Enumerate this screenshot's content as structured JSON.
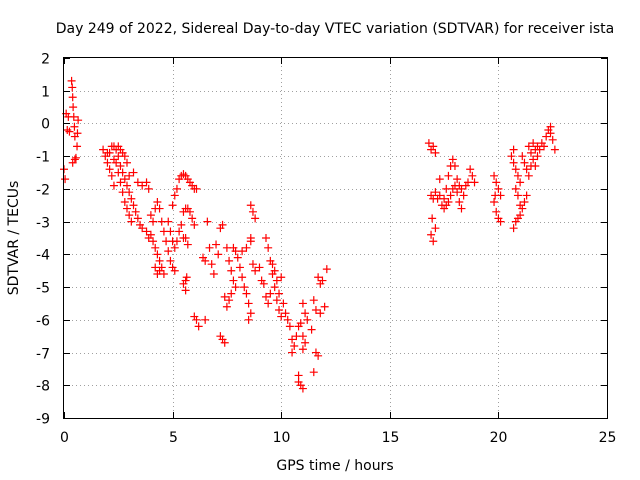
{
  "chart_data": {
    "type": "scatter",
    "title": "Day 249 of 2022, Sidereal Day-to-day VTEC variation (SDTVAR) for receiver ista",
    "xlabel": "GPS time / hours",
    "ylabel": "SDTVAR / TECUs",
    "xlim": [
      0,
      25
    ],
    "ylim": [
      -9,
      2
    ],
    "xticks": [
      0,
      5,
      10,
      15,
      20,
      25
    ],
    "yticks": [
      -9,
      -8,
      -7,
      -6,
      -5,
      -4,
      -3,
      -2,
      -1,
      0,
      1,
      2
    ],
    "grid": true,
    "marker": "plus",
    "color": "#ff0000",
    "series": [
      {
        "name": "SDTVAR",
        "points": [
          [
            0.0,
            -1.4
          ],
          [
            0.05,
            -1.7
          ],
          [
            0.1,
            0.3
          ],
          [
            0.15,
            -0.2
          ],
          [
            0.2,
            0.2
          ],
          [
            0.25,
            -0.25
          ],
          [
            0.35,
            1.3
          ],
          [
            0.38,
            1.1
          ],
          [
            0.4,
            0.8
          ],
          [
            0.42,
            0.5
          ],
          [
            0.45,
            0.2
          ],
          [
            0.48,
            -0.1
          ],
          [
            0.5,
            -0.4
          ],
          [
            0.5,
            -1.1
          ],
          [
            0.55,
            -1.05
          ],
          [
            0.6,
            -0.7
          ],
          [
            0.62,
            -0.3
          ],
          [
            0.65,
            0.1
          ],
          [
            0.4,
            -1.2
          ],
          [
            1.8,
            -0.8
          ],
          [
            1.9,
            -1.0
          ],
          [
            2.0,
            -1.2
          ],
          [
            2.1,
            -1.4
          ],
          [
            2.2,
            -1.6
          ],
          [
            2.3,
            -1.9
          ],
          [
            2.1,
            -0.9
          ],
          [
            2.2,
            -0.7
          ],
          [
            2.3,
            -0.7
          ],
          [
            2.4,
            -0.8
          ],
          [
            2.5,
            -0.7
          ],
          [
            2.6,
            -0.8
          ],
          [
            2.7,
            -0.9
          ],
          [
            2.8,
            -1.0
          ],
          [
            2.9,
            -1.2
          ],
          [
            2.5,
            -1.0
          ],
          [
            2.6,
            -1.3
          ],
          [
            2.7,
            -1.5
          ],
          [
            2.8,
            -1.7
          ],
          [
            2.9,
            -1.9
          ],
          [
            3.0,
            -2.1
          ],
          [
            3.1,
            -2.3
          ],
          [
            3.2,
            -2.5
          ],
          [
            3.3,
            -2.7
          ],
          [
            3.4,
            -2.9
          ],
          [
            3.5,
            -3.1
          ],
          [
            3.6,
            -3.2
          ],
          [
            2.4,
            -1.2
          ],
          [
            2.5,
            -1.5
          ],
          [
            2.6,
            -1.8
          ],
          [
            2.7,
            -2.1
          ],
          [
            2.8,
            -2.4
          ],
          [
            2.9,
            -2.6
          ],
          [
            3.0,
            -2.8
          ],
          [
            3.1,
            -3.0
          ],
          [
            3.0,
            -1.6
          ],
          [
            3.2,
            -1.5
          ],
          [
            3.4,
            -1.8
          ],
          [
            3.6,
            -1.9
          ],
          [
            2.0,
            -0.9
          ],
          [
            2.3,
            -1.1
          ],
          [
            3.8,
            -1.8
          ],
          [
            3.9,
            -2.0
          ],
          [
            3.8,
            -3.3
          ],
          [
            3.9,
            -3.5
          ],
          [
            4.0,
            -3.4
          ],
          [
            4.1,
            -3.6
          ],
          [
            4.2,
            -3.8
          ],
          [
            4.3,
            -4.0
          ],
          [
            4.4,
            -4.2
          ],
          [
            4.5,
            -4.4
          ],
          [
            4.6,
            -4.6
          ],
          [
            4.0,
            -2.8
          ],
          [
            4.1,
            -3.0
          ],
          [
            4.2,
            -2.6
          ],
          [
            4.3,
            -2.4
          ],
          [
            4.4,
            -2.6
          ],
          [
            4.5,
            -3.0
          ],
          [
            4.6,
            -3.3
          ],
          [
            4.7,
            -3.6
          ],
          [
            4.8,
            -3.9
          ],
          [
            4.9,
            -4.2
          ],
          [
            5.0,
            -4.4
          ],
          [
            5.1,
            -4.5
          ],
          [
            4.2,
            -4.4
          ],
          [
            4.3,
            -4.6
          ],
          [
            4.4,
            -4.5
          ],
          [
            4.8,
            -3.0
          ],
          [
            4.9,
            -3.3
          ],
          [
            5.0,
            -3.6
          ],
          [
            5.1,
            -3.8
          ],
          [
            5.2,
            -3.6
          ],
          [
            5.3,
            -3.3
          ],
          [
            5.4,
            -3.1
          ],
          [
            5.5,
            -3.5
          ],
          [
            5.0,
            -2.5
          ],
          [
            5.1,
            -2.2
          ],
          [
            5.2,
            -2.0
          ],
          [
            5.3,
            -1.7
          ],
          [
            5.4,
            -1.6
          ],
          [
            5.5,
            -1.55
          ],
          [
            5.6,
            -1.6
          ],
          [
            5.7,
            -1.7
          ],
          [
            5.8,
            -1.8
          ],
          [
            5.9,
            -1.9
          ],
          [
            6.0,
            -2.0
          ],
          [
            6.1,
            -2.0
          ],
          [
            5.5,
            -2.7
          ],
          [
            5.6,
            -2.6
          ],
          [
            5.7,
            -2.6
          ],
          [
            5.8,
            -2.7
          ],
          [
            5.9,
            -2.9
          ],
          [
            6.0,
            -3.1
          ],
          [
            5.6,
            -3.5
          ],
          [
            5.7,
            -3.7
          ],
          [
            5.6,
            -4.8
          ],
          [
            5.5,
            -4.9
          ],
          [
            5.65,
            -4.7
          ],
          [
            5.6,
            -5.1
          ],
          [
            6.0,
            -5.9
          ],
          [
            6.1,
            -6.0
          ],
          [
            6.2,
            -6.2
          ],
          [
            6.5,
            -6.0
          ],
          [
            6.4,
            -4.1
          ],
          [
            6.5,
            -4.2
          ],
          [
            6.6,
            -3.0
          ],
          [
            6.7,
            -3.8
          ],
          [
            6.8,
            -4.3
          ],
          [
            6.9,
            -4.6
          ],
          [
            7.0,
            -3.7
          ],
          [
            7.1,
            -4.0
          ],
          [
            7.2,
            -3.2
          ],
          [
            7.3,
            -3.1
          ],
          [
            7.2,
            -6.5
          ],
          [
            7.3,
            -6.6
          ],
          [
            7.4,
            -6.7
          ],
          [
            7.5,
            -3.8
          ],
          [
            7.6,
            -4.2
          ],
          [
            7.7,
            -4.5
          ],
          [
            7.8,
            -4.8
          ],
          [
            7.9,
            -5.0
          ],
          [
            7.4,
            -5.3
          ],
          [
            7.5,
            -5.6
          ],
          [
            7.6,
            -5.4
          ],
          [
            7.7,
            -5.2
          ],
          [
            7.8,
            -3.8
          ],
          [
            7.9,
            -3.9
          ],
          [
            8.0,
            -4.1
          ],
          [
            8.1,
            -4.4
          ],
          [
            8.2,
            -4.7
          ],
          [
            8.3,
            -5.0
          ],
          [
            8.4,
            -5.2
          ],
          [
            8.5,
            -5.5
          ],
          [
            8.5,
            -6.0
          ],
          [
            8.6,
            -5.8
          ],
          [
            8.2,
            -3.9
          ],
          [
            8.4,
            -3.8
          ],
          [
            8.6,
            -3.5
          ],
          [
            8.7,
            -4.3
          ],
          [
            8.8,
            -4.5
          ],
          [
            8.6,
            -2.5
          ],
          [
            8.7,
            -2.7
          ],
          [
            8.8,
            -2.9
          ],
          [
            8.6,
            -3.6
          ],
          [
            9.0,
            -4.4
          ],
          [
            9.1,
            -4.8
          ],
          [
            9.2,
            -4.9
          ],
          [
            9.3,
            -3.5
          ],
          [
            9.4,
            -3.8
          ],
          [
            9.5,
            -4.2
          ],
          [
            9.6,
            -4.6
          ],
          [
            9.7,
            -5.0
          ],
          [
            9.8,
            -5.4
          ],
          [
            9.9,
            -5.7
          ],
          [
            10.0,
            -5.9
          ],
          [
            9.6,
            -4.3
          ],
          [
            9.7,
            -4.5
          ],
          [
            9.8,
            -4.8
          ],
          [
            9.9,
            -5.2
          ],
          [
            9.3,
            -5.3
          ],
          [
            9.4,
            -5.5
          ],
          [
            9.5,
            -5.2
          ],
          [
            10.0,
            -4.7
          ],
          [
            10.1,
            -5.5
          ],
          [
            10.2,
            -5.8
          ],
          [
            10.3,
            -6.0
          ],
          [
            10.4,
            -6.2
          ],
          [
            10.5,
            -6.6
          ],
          [
            10.6,
            -6.8
          ],
          [
            10.5,
            -7.0
          ],
          [
            10.7,
            -6.5
          ],
          [
            10.8,
            -6.2
          ],
          [
            10.9,
            -6.1
          ],
          [
            11.0,
            -6.5
          ],
          [
            11.1,
            -6.7
          ],
          [
            11.0,
            -6.9
          ],
          [
            10.8,
            -7.9
          ],
          [
            10.9,
            -8.0
          ],
          [
            11.0,
            -8.1
          ],
          [
            10.8,
            -7.7
          ],
          [
            11.0,
            -5.5
          ],
          [
            11.1,
            -5.8
          ],
          [
            11.2,
            -6.0
          ],
          [
            11.4,
            -6.3
          ],
          [
            11.5,
            -5.4
          ],
          [
            11.6,
            -7.0
          ],
          [
            11.7,
            -7.1
          ],
          [
            11.5,
            -7.6
          ],
          [
            11.6,
            -5.7
          ],
          [
            11.8,
            -5.8
          ],
          [
            11.7,
            -4.7
          ],
          [
            11.8,
            -4.9
          ],
          [
            11.9,
            -4.8
          ],
          [
            12.0,
            -5.6
          ],
          [
            12.1,
            -4.45
          ],
          [
            16.8,
            -0.6
          ],
          [
            16.9,
            -0.8
          ],
          [
            17.0,
            -0.7
          ],
          [
            17.1,
            -0.9
          ],
          [
            16.9,
            -2.2
          ],
          [
            17.0,
            -2.3
          ],
          [
            17.1,
            -2.1
          ],
          [
            17.2,
            -2.3
          ],
          [
            17.3,
            -2.2
          ],
          [
            16.9,
            -3.4
          ],
          [
            17.0,
            -3.6
          ],
          [
            17.1,
            -3.2
          ],
          [
            16.95,
            -2.9
          ],
          [
            17.4,
            -2.5
          ],
          [
            17.5,
            -2.3
          ],
          [
            17.6,
            -2.0
          ],
          [
            17.7,
            -1.6
          ],
          [
            17.8,
            -1.3
          ],
          [
            17.9,
            -1.1
          ],
          [
            18.0,
            -1.3
          ],
          [
            18.1,
            -1.7
          ],
          [
            17.8,
            -2.2
          ],
          [
            17.9,
            -2.0
          ],
          [
            18.0,
            -1.9
          ],
          [
            18.1,
            -2.1
          ],
          [
            18.2,
            -2.4
          ],
          [
            18.3,
            -2.6
          ],
          [
            18.4,
            -2.2
          ],
          [
            18.2,
            -1.9
          ],
          [
            18.3,
            -2.0
          ],
          [
            18.5,
            -1.9
          ],
          [
            18.6,
            -1.8
          ],
          [
            18.7,
            -1.4
          ],
          [
            18.8,
            -1.6
          ],
          [
            18.9,
            -1.8
          ],
          [
            17.5,
            -2.6
          ],
          [
            17.6,
            -2.5
          ],
          [
            17.7,
            -2.4
          ],
          [
            17.3,
            -1.7
          ],
          [
            19.8,
            -1.6
          ],
          [
            19.9,
            -1.8
          ],
          [
            20.0,
            -2.0
          ],
          [
            20.1,
            -2.2
          ],
          [
            19.9,
            -2.7
          ],
          [
            20.0,
            -2.9
          ],
          [
            20.1,
            -3.0
          ],
          [
            19.8,
            -2.4
          ],
          [
            19.85,
            -2.2
          ],
          [
            20.6,
            -1.0
          ],
          [
            20.7,
            -1.2
          ],
          [
            20.8,
            -1.4
          ],
          [
            20.9,
            -1.6
          ],
          [
            21.0,
            -1.8
          ],
          [
            20.7,
            -0.8
          ],
          [
            20.8,
            -2.0
          ],
          [
            20.9,
            -2.2
          ],
          [
            21.0,
            -2.5
          ],
          [
            20.7,
            -3.2
          ],
          [
            20.8,
            -3.0
          ],
          [
            20.9,
            -2.9
          ],
          [
            21.0,
            -2.8
          ],
          [
            21.1,
            -2.6
          ],
          [
            21.2,
            -2.4
          ],
          [
            21.3,
            -2.2
          ],
          [
            21.1,
            -1.0
          ],
          [
            21.2,
            -1.2
          ],
          [
            21.3,
            -1.4
          ],
          [
            21.4,
            -1.6
          ],
          [
            21.5,
            -1.3
          ],
          [
            21.4,
            -0.7
          ],
          [
            21.5,
            -0.9
          ],
          [
            21.6,
            -1.1
          ],
          [
            21.7,
            -1.3
          ],
          [
            21.8,
            -1.0
          ],
          [
            21.9,
            -0.8
          ],
          [
            22.0,
            -0.6
          ],
          [
            22.1,
            -0.7
          ],
          [
            22.2,
            -0.4
          ],
          [
            22.3,
            -0.2
          ],
          [
            22.4,
            -0.1
          ],
          [
            22.5,
            -0.5
          ],
          [
            22.6,
            -0.8
          ],
          [
            22.4,
            -0.3
          ],
          [
            21.6,
            -0.6
          ],
          [
            21.7,
            -0.8
          ],
          [
            21.8,
            -0.7
          ]
        ]
      }
    ]
  }
}
